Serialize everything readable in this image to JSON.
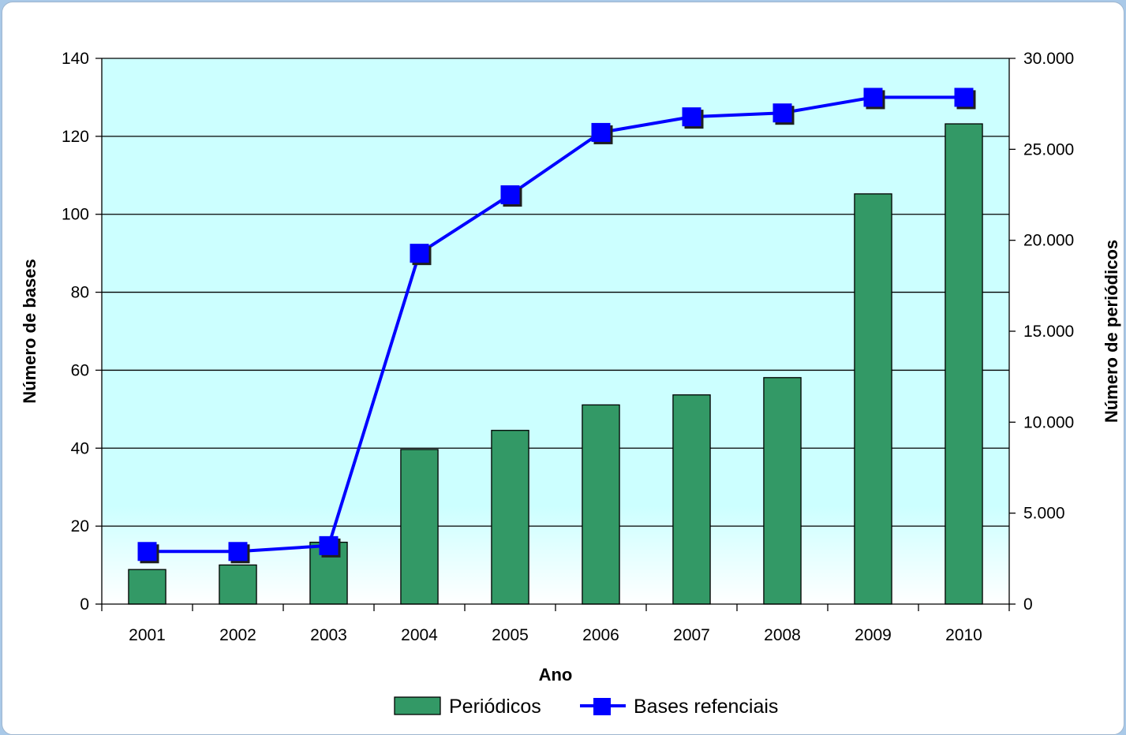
{
  "chart_data": {
    "type": "bar",
    "title": "",
    "xlabel": "Ano",
    "ylabel_left": "Número de bases",
    "ylabel_right": "Número de periódicos",
    "categories": [
      "2001",
      "2002",
      "2003",
      "2004",
      "2005",
      "2006",
      "2007",
      "2008",
      "2009",
      "2010"
    ],
    "ylim_left": [
      0,
      140
    ],
    "ylim_right": [
      0,
      30000
    ],
    "yticks_left": [
      "0",
      "20",
      "40",
      "60",
      "80",
      "100",
      "120",
      "140"
    ],
    "yticks_right": [
      "0",
      "5.000",
      "10.000",
      "15.000",
      "20.000",
      "25.000",
      "30.000"
    ],
    "grid": true,
    "legend_position": "bottom",
    "series": [
      {
        "name": "Periódicos",
        "kind": "bar",
        "axis": "right",
        "color": "#339966",
        "values": [
          1900,
          2150,
          3400,
          8500,
          9550,
          10950,
          11500,
          12450,
          22550,
          26400
        ]
      },
      {
        "name": "Bases refenciais",
        "kind": "line",
        "axis": "left",
        "color": "#0000ff",
        "values": [
          13.5,
          13.5,
          15,
          90,
          105,
          121,
          125,
          126,
          130,
          130
        ]
      }
    ]
  },
  "colors": {
    "plot_top": "#ccffff",
    "plot_bottom": "#ffffff",
    "bar": "#339966",
    "line": "#0000ff",
    "marker_shadow": "#1f1f1f"
  }
}
